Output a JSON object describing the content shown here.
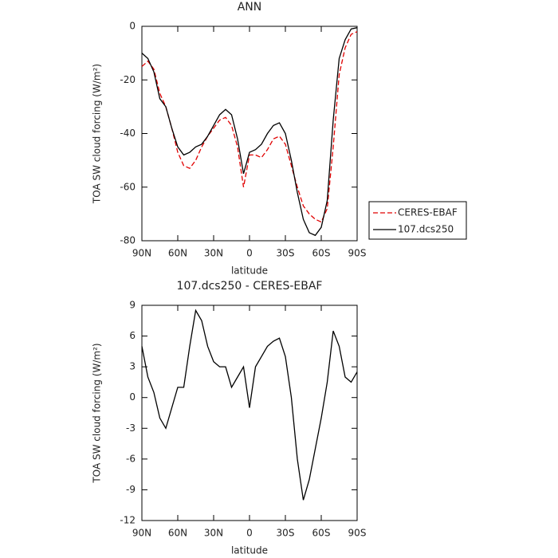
{
  "chart_data": [
    {
      "type": "line",
      "title": "ANN",
      "xlabel": "latitude",
      "ylabel": "TOA SW cloud forcing (W/m²)",
      "x": [
        90,
        85,
        80,
        75,
        70,
        65,
        60,
        55,
        50,
        45,
        40,
        35,
        30,
        25,
        20,
        15,
        10,
        5,
        0,
        -5,
        -10,
        -15,
        -20,
        -25,
        -30,
        -35,
        -40,
        -45,
        -50,
        -55,
        -60,
        -65,
        -70,
        -75,
        -80,
        -85,
        -90
      ],
      "series": [
        {
          "name": "CERES-EBAF",
          "color": "#e00000",
          "linestyle": "dashed",
          "values": [
            -15,
            -13,
            -16,
            -25,
            -30,
            -38,
            -47,
            -52,
            -53,
            -50,
            -45,
            -41,
            -38,
            -35,
            -34,
            -37,
            -45,
            -60,
            -48,
            -48,
            -49,
            -46,
            -42,
            -41,
            -44,
            -52,
            -60,
            -67,
            -70,
            -72,
            -73,
            -68,
            -45,
            -18,
            -8,
            -3,
            -2
          ]
        },
        {
          "name": "107.dcs250",
          "color": "#000000",
          "linestyle": "solid",
          "values": [
            -10,
            -12,
            -17,
            -27,
            -30,
            -38,
            -45,
            -48,
            -47,
            -45,
            -44,
            -41,
            -37,
            -33,
            -31,
            -33,
            -42,
            -55,
            -47,
            -46,
            -44,
            -40,
            -37,
            -36,
            -40,
            -50,
            -62,
            -72,
            -77,
            -78,
            -75,
            -65,
            -35,
            -12,
            -5,
            -1,
            -0.5
          ]
        }
      ],
      "xlim": [
        90,
        -90
      ],
      "xticks": [
        {
          "value": 90,
          "label": "90N"
        },
        {
          "value": 60,
          "label": "60N"
        },
        {
          "value": 30,
          "label": "30N"
        },
        0,
        {
          "value": -30,
          "label": "30S"
        },
        {
          "value": -60,
          "label": "60S"
        },
        {
          "value": -90,
          "label": "90S"
        }
      ],
      "ylim": [
        -80,
        0
      ],
      "yticks": [
        0,
        -20,
        -40,
        -60,
        -80
      ],
      "legend": "right"
    },
    {
      "type": "line",
      "title": "107.dcs250 - CERES-EBAF",
      "xlabel": "latitude",
      "ylabel": "TOA SW cloud forcing (W/m²)",
      "x": [
        90,
        85,
        80,
        75,
        70,
        65,
        60,
        55,
        50,
        45,
        40,
        35,
        30,
        25,
        20,
        15,
        10,
        5,
        0,
        -5,
        -10,
        -15,
        -20,
        -25,
        -30,
        -35,
        -40,
        -45,
        -50,
        -55,
        -60,
        -65,
        -70,
        -75,
        -80,
        -85,
        -90
      ],
      "values": [
        5,
        2,
        0.5,
        -2,
        -3,
        -1,
        1,
        1,
        5,
        8.5,
        7.5,
        5,
        3.5,
        3,
        3,
        1,
        2,
        3,
        -1,
        3,
        4,
        5,
        5.5,
        5.8,
        4,
        0,
        -6,
        -10,
        -8,
        -5,
        -2,
        1.5,
        6.5,
        5,
        2,
        1.5,
        2.5
      ],
      "color": "#000000",
      "xlim": [
        90,
        -90
      ],
      "xticks": [
        {
          "value": 90,
          "label": "90N"
        },
        {
          "value": 60,
          "label": "60N"
        },
        {
          "value": 30,
          "label": "30N"
        },
        0,
        {
          "value": -30,
          "label": "30S"
        },
        {
          "value": -60,
          "label": "60S"
        },
        {
          "value": -90,
          "label": "90S"
        }
      ],
      "ylim": [
        -12,
        9
      ],
      "yticks": [
        9,
        6,
        3,
        0,
        -3,
        -6,
        -9,
        -12
      ]
    }
  ]
}
